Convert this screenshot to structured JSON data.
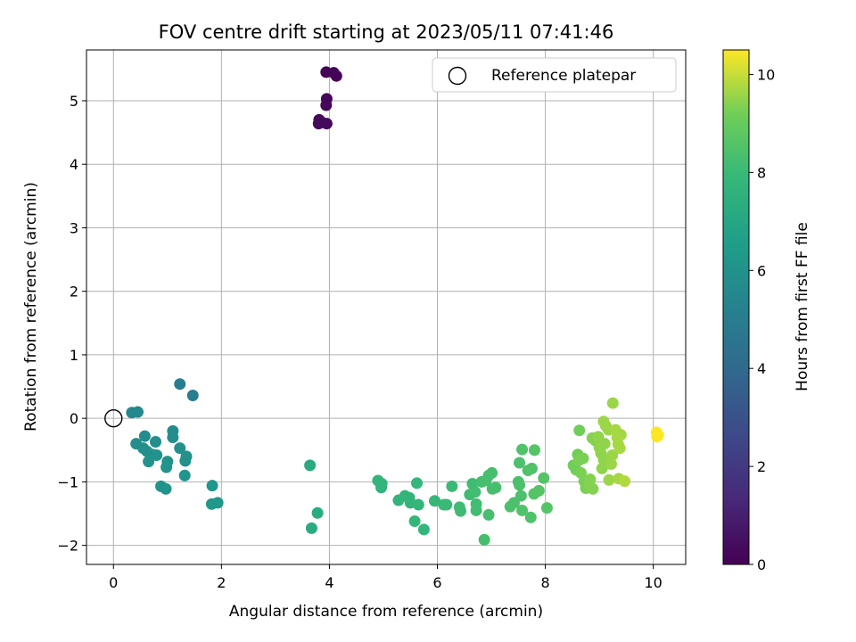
{
  "chart_data": {
    "type": "scatter",
    "title": "FOV centre drift starting at 2023/05/11 07:41:46",
    "xlabel": "Angular distance from reference (arcmin)",
    "ylabel": "Rotation from reference (arcmin)",
    "xlim": [
      -0.5,
      10.6
    ],
    "ylim": [
      -2.3,
      5.8
    ],
    "xticks": [
      0,
      2,
      4,
      6,
      8,
      10
    ],
    "yticks": [
      -2,
      -1,
      0,
      1,
      2,
      3,
      4,
      5
    ],
    "grid": true,
    "legend": {
      "position": "top-right",
      "entries": [
        "Reference platepar"
      ]
    },
    "reference_point": {
      "x": 0,
      "y": 0
    },
    "colorbar": {
      "label": "Hours from first FF file",
      "range": [
        0,
        10.5
      ],
      "ticks": [
        0,
        2,
        4,
        6,
        8,
        10
      ],
      "colormap": "viridis"
    },
    "points": [
      {
        "x": 3.94,
        "y": 5.45,
        "h": 0.1
      },
      {
        "x": 4.08,
        "y": 5.44,
        "h": 0.1
      },
      {
        "x": 4.13,
        "y": 5.39,
        "h": 0.15
      },
      {
        "x": 3.95,
        "y": 5.03,
        "h": 0.2
      },
      {
        "x": 3.94,
        "y": 4.93,
        "h": 0.2
      },
      {
        "x": 3.81,
        "y": 4.7,
        "h": 0.25
      },
      {
        "x": 3.86,
        "y": 4.66,
        "h": 0.3
      },
      {
        "x": 3.8,
        "y": 4.64,
        "h": 0.3
      },
      {
        "x": 3.95,
        "y": 4.64,
        "h": 0.3
      },
      {
        "x": 1.23,
        "y": 0.54,
        "h": 5.0
      },
      {
        "x": 1.47,
        "y": 0.36,
        "h": 5.0
      },
      {
        "x": 0.34,
        "y": 0.09,
        "h": 5.6
      },
      {
        "x": 0.45,
        "y": 0.1,
        "h": 5.6
      },
      {
        "x": 1.1,
        "y": -0.2,
        "h": 5.7
      },
      {
        "x": 0.58,
        "y": -0.28,
        "h": 5.7
      },
      {
        "x": 1.1,
        "y": -0.3,
        "h": 5.8
      },
      {
        "x": 0.78,
        "y": -0.37,
        "h": 5.8
      },
      {
        "x": 0.42,
        "y": -0.4,
        "h": 5.8
      },
      {
        "x": 0.55,
        "y": -0.47,
        "h": 5.9
      },
      {
        "x": 1.23,
        "y": -0.47,
        "h": 5.9
      },
      {
        "x": 0.62,
        "y": -0.52,
        "h": 5.9
      },
      {
        "x": 0.72,
        "y": -0.57,
        "h": 5.9
      },
      {
        "x": 0.8,
        "y": -0.58,
        "h": 6.0
      },
      {
        "x": 1.35,
        "y": -0.6,
        "h": 6.0
      },
      {
        "x": 0.65,
        "y": -0.68,
        "h": 6.0
      },
      {
        "x": 1.0,
        "y": -0.68,
        "h": 6.0
      },
      {
        "x": 1.33,
        "y": -0.67,
        "h": 6.0
      },
      {
        "x": 0.98,
        "y": -0.77,
        "h": 6.1
      },
      {
        "x": 1.32,
        "y": -0.9,
        "h": 6.1
      },
      {
        "x": 0.88,
        "y": -1.07,
        "h": 6.1
      },
      {
        "x": 0.97,
        "y": -1.11,
        "h": 6.1
      },
      {
        "x": 1.83,
        "y": -1.06,
        "h": 6.2
      },
      {
        "x": 1.82,
        "y": -1.35,
        "h": 6.3
      },
      {
        "x": 1.93,
        "y": -1.33,
        "h": 6.3
      },
      {
        "x": 3.64,
        "y": -0.74,
        "h": 7.2
      },
      {
        "x": 3.78,
        "y": -1.49,
        "h": 7.3
      },
      {
        "x": 3.67,
        "y": -1.73,
        "h": 7.3
      },
      {
        "x": 4.9,
        "y": -0.98,
        "h": 7.7
      },
      {
        "x": 4.97,
        "y": -1.03,
        "h": 7.7
      },
      {
        "x": 4.96,
        "y": -1.09,
        "h": 7.7
      },
      {
        "x": 5.28,
        "y": -1.29,
        "h": 7.7
      },
      {
        "x": 5.4,
        "y": -1.22,
        "h": 7.7
      },
      {
        "x": 5.48,
        "y": -1.25,
        "h": 7.7
      },
      {
        "x": 5.5,
        "y": -1.33,
        "h": 7.7
      },
      {
        "x": 5.62,
        "y": -1.02,
        "h": 7.8
      },
      {
        "x": 5.65,
        "y": -1.36,
        "h": 7.8
      },
      {
        "x": 5.58,
        "y": -1.62,
        "h": 7.8
      },
      {
        "x": 5.75,
        "y": -1.75,
        "h": 7.8
      },
      {
        "x": 5.95,
        "y": -1.3,
        "h": 7.9
      },
      {
        "x": 6.12,
        "y": -1.36,
        "h": 8.0
      },
      {
        "x": 6.17,
        "y": -1.36,
        "h": 8.0
      },
      {
        "x": 6.27,
        "y": -1.07,
        "h": 8.0
      },
      {
        "x": 6.41,
        "y": -1.4,
        "h": 8.1
      },
      {
        "x": 6.43,
        "y": -1.46,
        "h": 8.1
      },
      {
        "x": 6.6,
        "y": -1.2,
        "h": 8.1
      },
      {
        "x": 6.65,
        "y": -1.03,
        "h": 8.1
      },
      {
        "x": 6.7,
        "y": -1.16,
        "h": 8.2
      },
      {
        "x": 6.72,
        "y": -1.35,
        "h": 8.2
      },
      {
        "x": 6.72,
        "y": -1.45,
        "h": 8.2
      },
      {
        "x": 6.82,
        "y": -1.0,
        "h": 8.2
      },
      {
        "x": 6.9,
        "y": -0.98,
        "h": 8.3
      },
      {
        "x": 6.95,
        "y": -0.9,
        "h": 8.3
      },
      {
        "x": 7.01,
        "y": -0.86,
        "h": 8.3
      },
      {
        "x": 7.02,
        "y": -1.11,
        "h": 8.3
      },
      {
        "x": 7.08,
        "y": -1.09,
        "h": 8.3
      },
      {
        "x": 6.95,
        "y": -1.52,
        "h": 8.3
      },
      {
        "x": 6.87,
        "y": -1.91,
        "h": 8.3
      },
      {
        "x": 7.35,
        "y": -1.39,
        "h": 8.4
      },
      {
        "x": 7.42,
        "y": -1.33,
        "h": 8.4
      },
      {
        "x": 7.5,
        "y": -1.0,
        "h": 8.4
      },
      {
        "x": 7.52,
        "y": -1.05,
        "h": 8.4
      },
      {
        "x": 7.55,
        "y": -1.22,
        "h": 8.4
      },
      {
        "x": 7.52,
        "y": -0.7,
        "h": 8.4
      },
      {
        "x": 7.57,
        "y": -0.49,
        "h": 8.5
      },
      {
        "x": 7.57,
        "y": -1.45,
        "h": 8.5
      },
      {
        "x": 7.68,
        "y": -0.82,
        "h": 8.5
      },
      {
        "x": 7.75,
        "y": -0.79,
        "h": 8.5
      },
      {
        "x": 7.73,
        "y": -1.56,
        "h": 8.5
      },
      {
        "x": 7.79,
        "y": -1.19,
        "h": 8.6
      },
      {
        "x": 7.8,
        "y": -0.5,
        "h": 8.6
      },
      {
        "x": 7.88,
        "y": -1.14,
        "h": 8.6
      },
      {
        "x": 7.97,
        "y": -0.94,
        "h": 8.6
      },
      {
        "x": 8.03,
        "y": -1.41,
        "h": 8.6
      },
      {
        "x": 8.52,
        "y": -0.74,
        "h": 9.2
      },
      {
        "x": 8.57,
        "y": -0.81,
        "h": 9.2
      },
      {
        "x": 8.6,
        "y": -0.57,
        "h": 9.2
      },
      {
        "x": 8.63,
        "y": -0.19,
        "h": 9.2
      },
      {
        "x": 8.62,
        "y": -0.66,
        "h": 9.3
      },
      {
        "x": 8.66,
        "y": -0.86,
        "h": 9.3
      },
      {
        "x": 8.7,
        "y": -0.63,
        "h": 9.3
      },
      {
        "x": 8.72,
        "y": -0.99,
        "h": 9.3
      },
      {
        "x": 8.75,
        "y": -1.1,
        "h": 9.3
      },
      {
        "x": 8.82,
        "y": -1.05,
        "h": 9.4
      },
      {
        "x": 8.83,
        "y": -0.96,
        "h": 9.4
      },
      {
        "x": 8.88,
        "y": -1.11,
        "h": 9.4
      },
      {
        "x": 8.87,
        "y": -0.31,
        "h": 9.4
      },
      {
        "x": 8.93,
        "y": -0.35,
        "h": 9.4
      },
      {
        "x": 8.98,
        "y": -0.29,
        "h": 9.5
      },
      {
        "x": 9.0,
        "y": -0.46,
        "h": 9.5
      },
      {
        "x": 9.03,
        "y": -0.55,
        "h": 9.5
      },
      {
        "x": 9.05,
        "y": -0.79,
        "h": 9.5
      },
      {
        "x": 9.08,
        "y": -0.65,
        "h": 9.5
      },
      {
        "x": 9.1,
        "y": -0.4,
        "h": 9.5
      },
      {
        "x": 9.12,
        "y": -0.12,
        "h": 9.6
      },
      {
        "x": 9.17,
        "y": -0.18,
        "h": 9.6
      },
      {
        "x": 9.22,
        "y": -0.72,
        "h": 9.6
      },
      {
        "x": 9.24,
        "y": -0.58,
        "h": 9.6
      },
      {
        "x": 9.25,
        "y": 0.24,
        "h": 9.6
      },
      {
        "x": 9.3,
        "y": -0.18,
        "h": 9.7
      },
      {
        "x": 9.33,
        "y": -0.3,
        "h": 9.7
      },
      {
        "x": 9.35,
        "y": -0.41,
        "h": 9.7
      },
      {
        "x": 9.38,
        "y": -0.47,
        "h": 9.7
      },
      {
        "x": 9.4,
        "y": -0.26,
        "h": 9.7
      },
      {
        "x": 9.08,
        "y": -0.05,
        "h": 9.6
      },
      {
        "x": 9.18,
        "y": -0.97,
        "h": 9.6
      },
      {
        "x": 9.36,
        "y": -0.95,
        "h": 9.7
      },
      {
        "x": 9.47,
        "y": -0.99,
        "h": 9.8
      },
      {
        "x": 10.06,
        "y": -0.22,
        "h": 10.5
      },
      {
        "x": 10.09,
        "y": -0.26,
        "h": 10.5
      },
      {
        "x": 10.07,
        "y": -0.29,
        "h": 10.5
      }
    ]
  }
}
